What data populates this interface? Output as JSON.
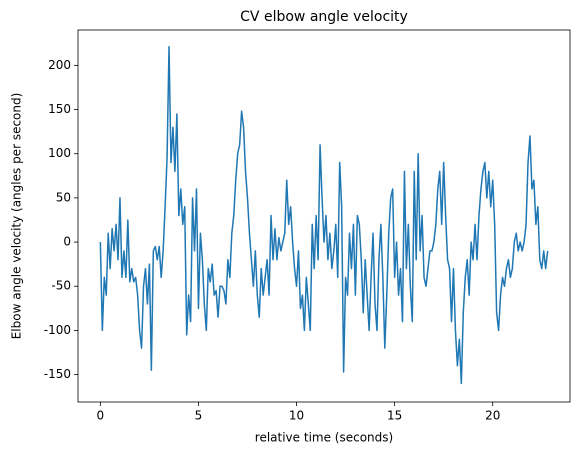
{
  "chart_data": {
    "type": "line",
    "title": "CV elbow angle velocity",
    "xlabel": "relative time (seconds)",
    "ylabel": "Elbow angle velocity (angles per second)",
    "color": "#1f77b4",
    "xlim": [
      -1.14,
      23.94
    ],
    "ylim": [
      -181,
      240
    ],
    "xticks": [
      0,
      5,
      10,
      15,
      20
    ],
    "yticks": [
      -150,
      -100,
      -50,
      0,
      50,
      100,
      150,
      200
    ],
    "x": [
      0,
      0.1,
      0.2,
      0.3,
      0.4,
      0.5,
      0.6,
      0.7,
      0.8,
      0.9,
      1,
      1.1,
      1.2,
      1.3,
      1.4,
      1.5,
      1.6,
      1.7,
      1.8,
      1.9,
      2,
      2.1,
      2.2,
      2.3,
      2.4,
      2.5,
      2.6,
      2.7,
      2.8,
      2.9,
      3,
      3.1,
      3.2,
      3.3,
      3.4,
      3.5,
      3.6,
      3.7,
      3.8,
      3.9,
      4,
      4.1,
      4.2,
      4.3,
      4.4,
      4.5,
      4.6,
      4.7,
      4.8,
      4.9,
      5,
      5.1,
      5.2,
      5.3,
      5.4,
      5.5,
      5.6,
      5.7,
      5.8,
      5.9,
      6,
      6.1,
      6.2,
      6.3,
      6.4,
      6.5,
      6.6,
      6.7,
      6.8,
      6.9,
      7,
      7.1,
      7.2,
      7.3,
      7.4,
      7.5,
      7.6,
      7.7,
      7.8,
      7.9,
      8,
      8.1,
      8.2,
      8.3,
      8.4,
      8.5,
      8.6,
      8.7,
      8.8,
      8.9,
      9,
      9.1,
      9.2,
      9.3,
      9.4,
      9.5,
      9.6,
      9.7,
      9.8,
      9.9,
      10,
      10.1,
      10.2,
      10.3,
      10.4,
      10.5,
      10.6,
      10.7,
      10.8,
      10.9,
      11,
      11.1,
      11.2,
      11.3,
      11.4,
      11.5,
      11.6,
      11.7,
      11.8,
      11.9,
      12,
      12.1,
      12.2,
      12.3,
      12.4,
      12.5,
      12.6,
      12.7,
      12.8,
      12.9,
      13,
      13.1,
      13.2,
      13.3,
      13.4,
      13.5,
      13.6,
      13.7,
      13.8,
      13.9,
      14,
      14.1,
      14.2,
      14.3,
      14.4,
      14.5,
      14.6,
      14.7,
      14.8,
      14.9,
      15,
      15.1,
      15.2,
      15.3,
      15.4,
      15.5,
      15.6,
      15.7,
      15.8,
      15.9,
      16,
      16.1,
      16.2,
      16.3,
      16.4,
      16.5,
      16.6,
      16.7,
      16.8,
      16.9,
      17,
      17.1,
      17.2,
      17.3,
      17.4,
      17.5,
      17.6,
      17.7,
      17.8,
      17.9,
      18,
      18.1,
      18.2,
      18.3,
      18.4,
      18.5,
      18.6,
      18.7,
      18.8,
      18.9,
      19,
      19.1,
      19.2,
      19.3,
      19.4,
      19.5,
      19.6,
      19.7,
      19.8,
      19.9,
      20,
      20.1,
      20.2,
      20.3,
      20.4,
      20.5,
      20.6,
      20.7,
      20.8,
      20.9,
      21,
      21.1,
      21.2,
      21.3,
      21.4,
      21.5,
      21.6,
      21.7,
      21.8,
      21.9,
      22,
      22.1,
      22.2,
      22.3,
      22.4,
      22.5,
      22.6,
      22.7,
      22.8
    ],
    "values": [
      0,
      -100,
      -40,
      -60,
      10,
      -30,
      15,
      -10,
      20,
      -20,
      50,
      -40,
      -10,
      -40,
      25,
      -45,
      -30,
      -45,
      -40,
      -60,
      -100,
      -120,
      -50,
      -30,
      -70,
      -25,
      -145,
      -10,
      -5,
      -20,
      -5,
      -40,
      -10,
      40,
      95,
      221,
      90,
      130,
      80,
      145,
      30,
      60,
      20,
      40,
      -105,
      -60,
      -90,
      50,
      -10,
      60,
      -75,
      10,
      -20,
      -70,
      -100,
      -30,
      -45,
      -25,
      -60,
      -55,
      -85,
      -50,
      -50,
      -55,
      -70,
      -20,
      -40,
      10,
      30,
      70,
      100,
      110,
      148,
      130,
      80,
      50,
      10,
      -20,
      -50,
      -10,
      -60,
      -85,
      -30,
      -60,
      -40,
      -20,
      -60,
      30,
      -20,
      15,
      -20,
      5,
      -10,
      0,
      10,
      70,
      20,
      40,
      0,
      -30,
      -50,
      -10,
      -75,
      -60,
      -100,
      -40,
      -70,
      -100,
      20,
      -30,
      30,
      -20,
      110,
      50,
      0,
      30,
      -20,
      10,
      -30,
      -10,
      20,
      -40,
      90,
      40,
      -147,
      -40,
      -60,
      10,
      -30,
      20,
      -60,
      30,
      20,
      -20,
      -80,
      -20,
      -60,
      -100,
      -40,
      10,
      -70,
      -100,
      -20,
      20,
      -40,
      -120,
      -60,
      10,
      50,
      60,
      -40,
      0,
      -60,
      -30,
      -90,
      80,
      -30,
      20,
      -50,
      -90,
      80,
      -20,
      100,
      -10,
      30,
      -40,
      -50,
      -30,
      -10,
      -10,
      0,
      20,
      60,
      80,
      20,
      90,
      30,
      -20,
      -30,
      -90,
      -30,
      -100,
      -140,
      -110,
      -160,
      -80,
      -40,
      -20,
      -60,
      0,
      -20,
      20,
      -20,
      30,
      60,
      80,
      90,
      50,
      80,
      40,
      70,
      20,
      -80,
      -100,
      -60,
      -40,
      -50,
      -30,
      -20,
      -40,
      -30,
      0,
      10,
      -10,
      0,
      -10,
      0,
      20,
      90,
      120,
      60,
      70,
      20,
      40,
      -20,
      -30,
      -10,
      -30,
      -10
    ]
  }
}
